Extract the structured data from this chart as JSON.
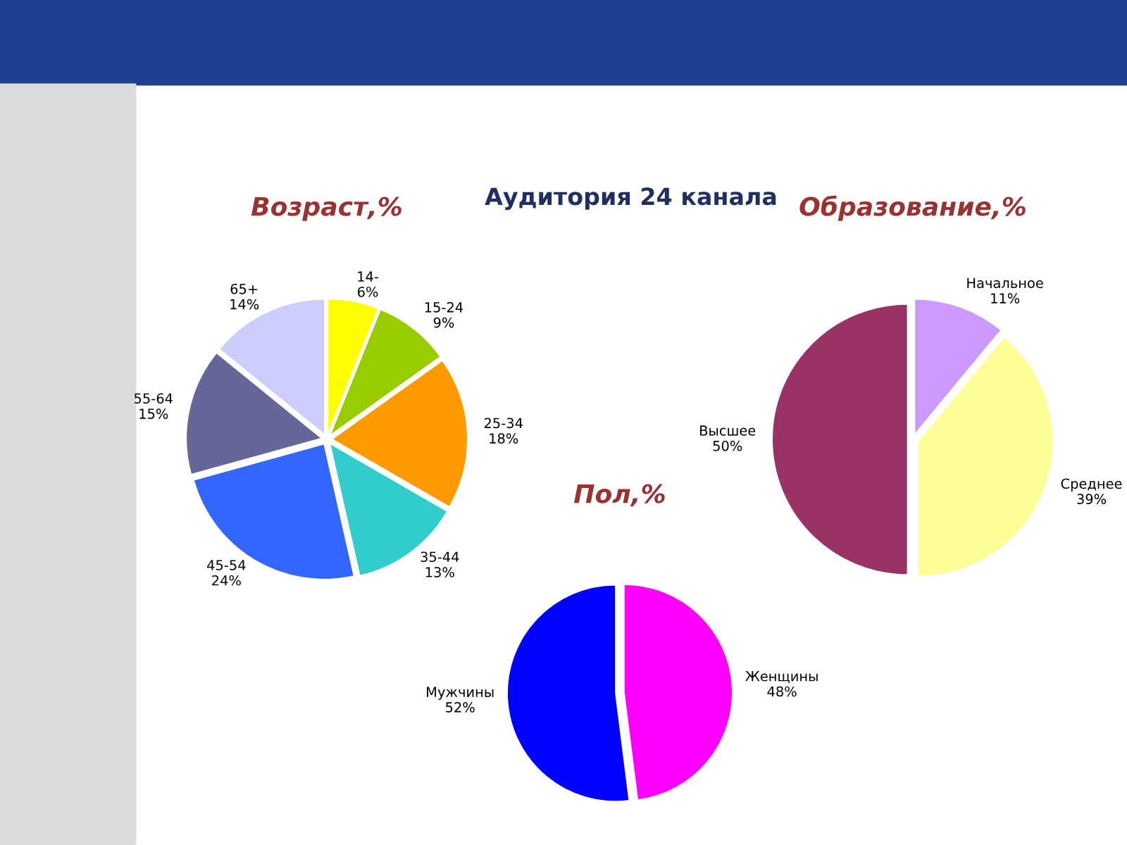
{
  "chart_data": [
    {
      "type": "pie",
      "title": "Возраст,%",
      "annotations": [
        "Аудитория 24 канала"
      ],
      "categories": [
        "14-",
        "15-24",
        "25-34",
        "35-44",
        "45-54",
        "55-64",
        "65+"
      ],
      "values": [
        6,
        9,
        18,
        13,
        24,
        15,
        14
      ],
      "value_labels": [
        "6%",
        "9%",
        "18%",
        "13%",
        "24%",
        "15%",
        "14%"
      ],
      "colors": [
        "#ffff00",
        "#99cc00",
        "#ff9900",
        "#33cccc",
        "#3366ff",
        "#666699",
        "#ccccff"
      ]
    },
    {
      "type": "pie",
      "title": "Образование,%",
      "categories": [
        "Начальное",
        "Среднее",
        "Высшее"
      ],
      "values": [
        11,
        39,
        50
      ],
      "value_labels": [
        "11%",
        "39%",
        "50%"
      ],
      "colors": [
        "#cc99ff",
        "#ffff99",
        "#993366"
      ]
    },
    {
      "type": "pie",
      "title": "Пол,%",
      "categories": [
        "Женщины",
        "Мужчины"
      ],
      "values": [
        48,
        52
      ],
      "value_labels": [
        "48%",
        "52%"
      ],
      "colors": [
        "#ff00ff",
        "#0000ff"
      ]
    }
  ]
}
